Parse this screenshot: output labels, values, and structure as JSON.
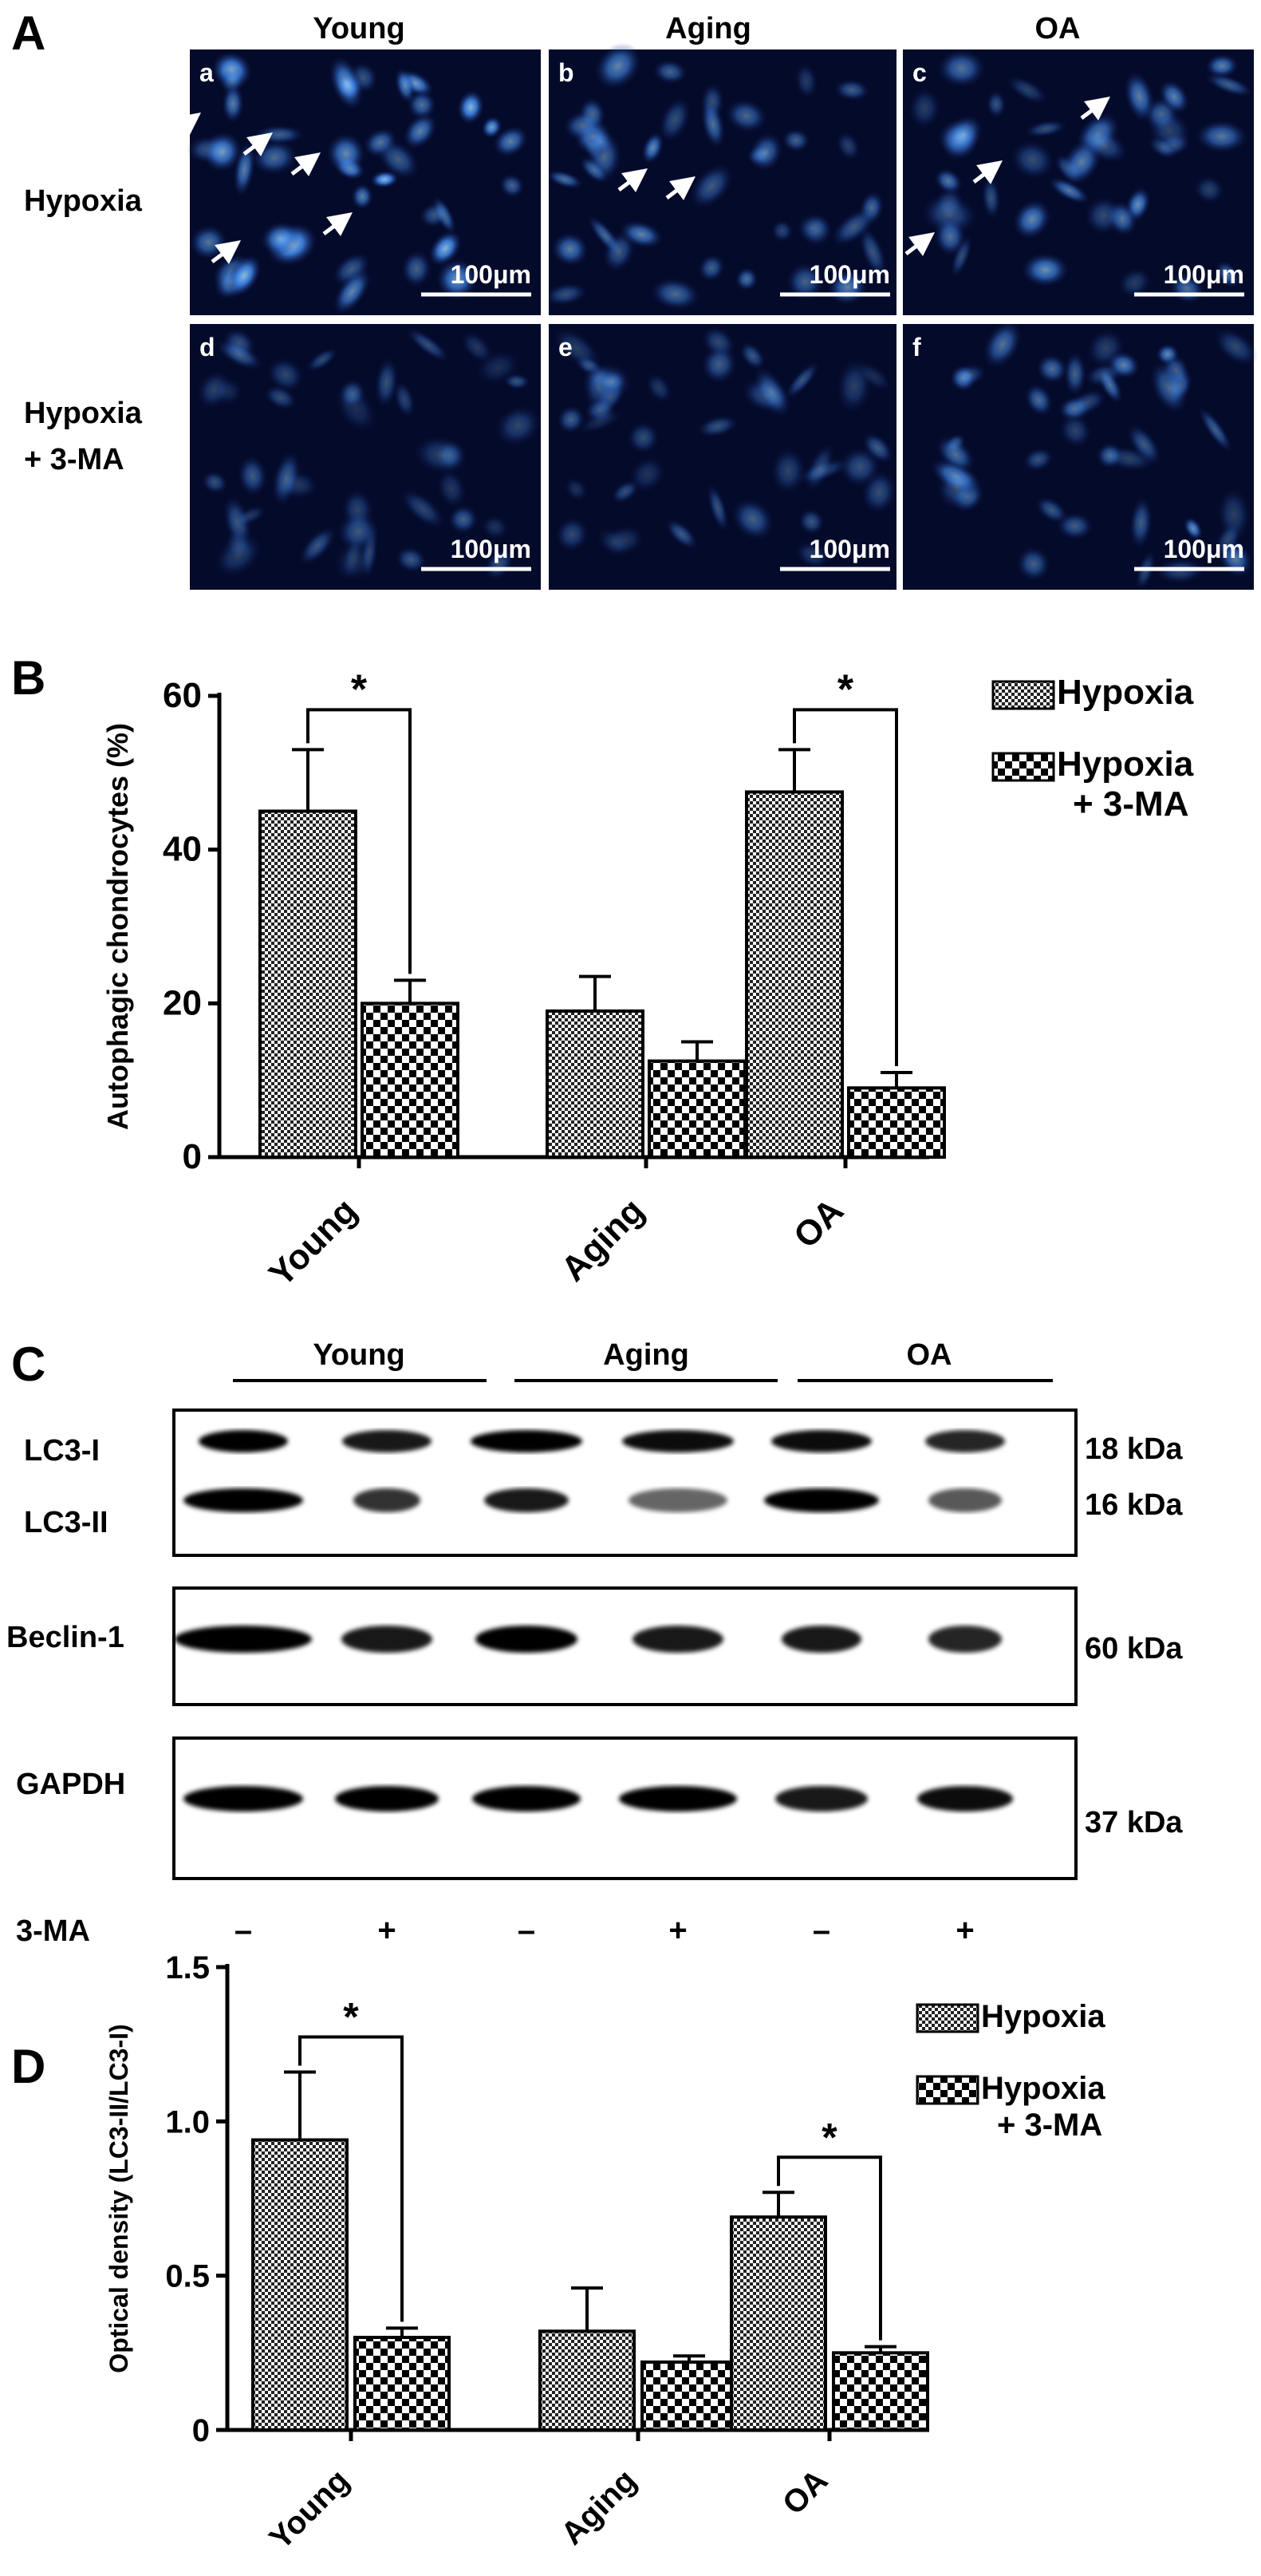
{
  "panel_a": {
    "letter": "A",
    "col_headers": [
      "Young",
      "Aging",
      "OA"
    ],
    "row_labels": [
      [
        "Hypoxia"
      ],
      [
        "Hypoxia",
        "+ 3-MA"
      ]
    ],
    "tiles": [
      {
        "letter": "a",
        "scale": "100μm",
        "arrows": 5,
        "brightness": "high"
      },
      {
        "letter": "b",
        "scale": "100μm",
        "arrows": 2,
        "brightness": "medium"
      },
      {
        "letter": "c",
        "scale": "100μm",
        "arrows": 3,
        "brightness": "medium"
      },
      {
        "letter": "d",
        "scale": "100μm",
        "arrows": 0,
        "brightness": "low"
      },
      {
        "letter": "e",
        "scale": "100μm",
        "arrows": 0,
        "brightness": "low"
      },
      {
        "letter": "f",
        "scale": "100μm",
        "arrows": 0,
        "brightness": "medium"
      }
    ],
    "colors": {
      "background": "#040a2a",
      "cell": "#3a7be0",
      "cell_bright": "#7cc0ff"
    }
  },
  "panel_b": {
    "letter": "B",
    "chart_data": {
      "type": "bar",
      "categories": [
        "Young",
        "Aging",
        "OA"
      ],
      "ylabel": "Autophagic chondrocytes (%)",
      "ylim": [
        0,
        60
      ],
      "yticks": [
        "0",
        "20",
        "40",
        "60"
      ],
      "series": [
        {
          "name": "Hypoxia",
          "pattern": "fine-checker",
          "values": [
            45,
            19,
            47.5
          ],
          "errors": [
            8,
            4.5,
            5.5
          ]
        },
        {
          "name": "Hypoxia + 3-MA",
          "pattern": "coarse-checker",
          "values": [
            20,
            12.5,
            9
          ],
          "errors": [
            3,
            2.5,
            2
          ]
        }
      ],
      "significance": [
        {
          "category": "Young",
          "label": "*"
        },
        {
          "category": "OA",
          "label": "*"
        }
      ],
      "legend": [
        [
          "Hypoxia"
        ],
        [
          "Hypoxia",
          "+ 3-MA"
        ]
      ],
      "legend_position": "top-right"
    }
  },
  "panel_c": {
    "letter": "C",
    "group_headers": [
      "Young",
      "Aging",
      "OA"
    ],
    "blots": [
      {
        "labels": [
          "LC3-I",
          "LC3-II"
        ],
        "kda": [
          "18 kDa",
          "16 kDa"
        ]
      },
      {
        "labels": [
          "Beclin-1"
        ],
        "kda": [
          "60 kDa"
        ]
      },
      {
        "labels": [
          "GAPDH"
        ],
        "kda": [
          "37 kDa"
        ]
      }
    ],
    "treatment_label": "3-MA",
    "lanes": [
      "–",
      "+",
      "–",
      "+",
      "–",
      "+"
    ]
  },
  "panel_d": {
    "letter": "D",
    "chart_data": {
      "type": "bar",
      "categories": [
        "Young",
        "Aging",
        "OA"
      ],
      "ylabel": "Optical density (LC3-II/LC3-I)",
      "ylim": [
        0,
        1.5
      ],
      "yticks": [
        "0",
        "0.5",
        "1.0",
        "1.5"
      ],
      "series": [
        {
          "name": "Hypoxia",
          "pattern": "fine-checker",
          "values": [
            0.94,
            0.32,
            0.69
          ],
          "errors": [
            0.22,
            0.14,
            0.08
          ]
        },
        {
          "name": "Hypoxia + 3-MA",
          "pattern": "coarse-checker",
          "values": [
            0.3,
            0.22,
            0.25
          ],
          "errors": [
            0.03,
            0.02,
            0.02
          ]
        }
      ],
      "significance": [
        {
          "category": "Young",
          "label": "*"
        },
        {
          "category": "OA",
          "label": "*"
        }
      ],
      "legend": [
        [
          "Hypoxia"
        ],
        [
          "Hypoxia",
          "+ 3-MA"
        ]
      ],
      "legend_position": "top-right"
    }
  }
}
